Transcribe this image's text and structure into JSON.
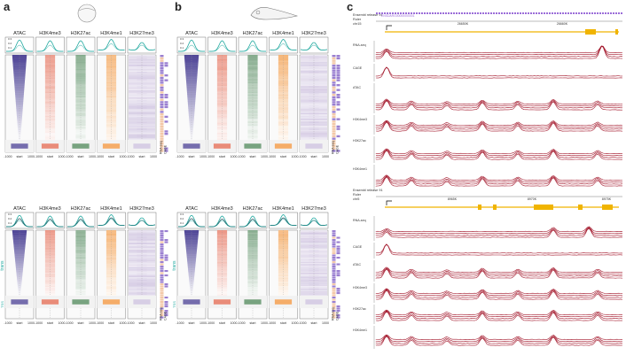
{
  "panels": {
    "a": "a",
    "b": "b",
    "c": "c"
  },
  "heatmap_columns": [
    "ATAC",
    "H3K4me3",
    "H3K27ac",
    "H3K4me1",
    "H3K27me3"
  ],
  "x_ticks": [
    "-1000",
    "start",
    "1000"
  ],
  "side_labels": {
    "rnaseq": "RNA-seq",
    "cage": "CAGE"
  },
  "cluster_labels": {
    "top": "Ensembl",
    "bottom": "RefSeq",
    "tss_short": "TSS",
    "tss_c": "TSS",
    "mid": "trans"
  },
  "colors": {
    "ATAC": "#3a2f8a",
    "H3K4me3": "#e05a40",
    "H3K27ac": "#3e7b4a",
    "H3K4me1": "#f08a28",
    "H3K27me3": "#7a5aa8",
    "profile": "#22a9a0",
    "profile_dark": "#1f4a58",
    "track": "#a3172b",
    "gene": "#f0b400",
    "purple_side": "#9a7fd0",
    "peach_side": "#f3c9a8"
  },
  "browser_top": {
    "header": "Ensembl release 91",
    "ruler_label": "Ruler",
    "chr": "chr15",
    "coord1": "26650K",
    "coord2": "26660K",
    "transcript": "ENSDARG00000000001",
    "tracks": [
      "RNA-seq",
      "CAGE",
      "ATAC",
      "H3K4me3",
      "H3K27ac",
      "H3K4me1"
    ]
  },
  "browser_bottom": {
    "header": "Ensembl release 91",
    "ruler_label": "Ruler",
    "chr": "chr5",
    "coord1": "8965K",
    "coord2": "8970K",
    "coord3": "8975K",
    "tracks": [
      "RNA-seq",
      "CAGE",
      "ATAC",
      "H3K4me3",
      "H3K27ac",
      "H3K4me1"
    ]
  },
  "profile_ticks": {
    "top": "0.3",
    "mid": "0.2",
    "low": "0.1"
  }
}
